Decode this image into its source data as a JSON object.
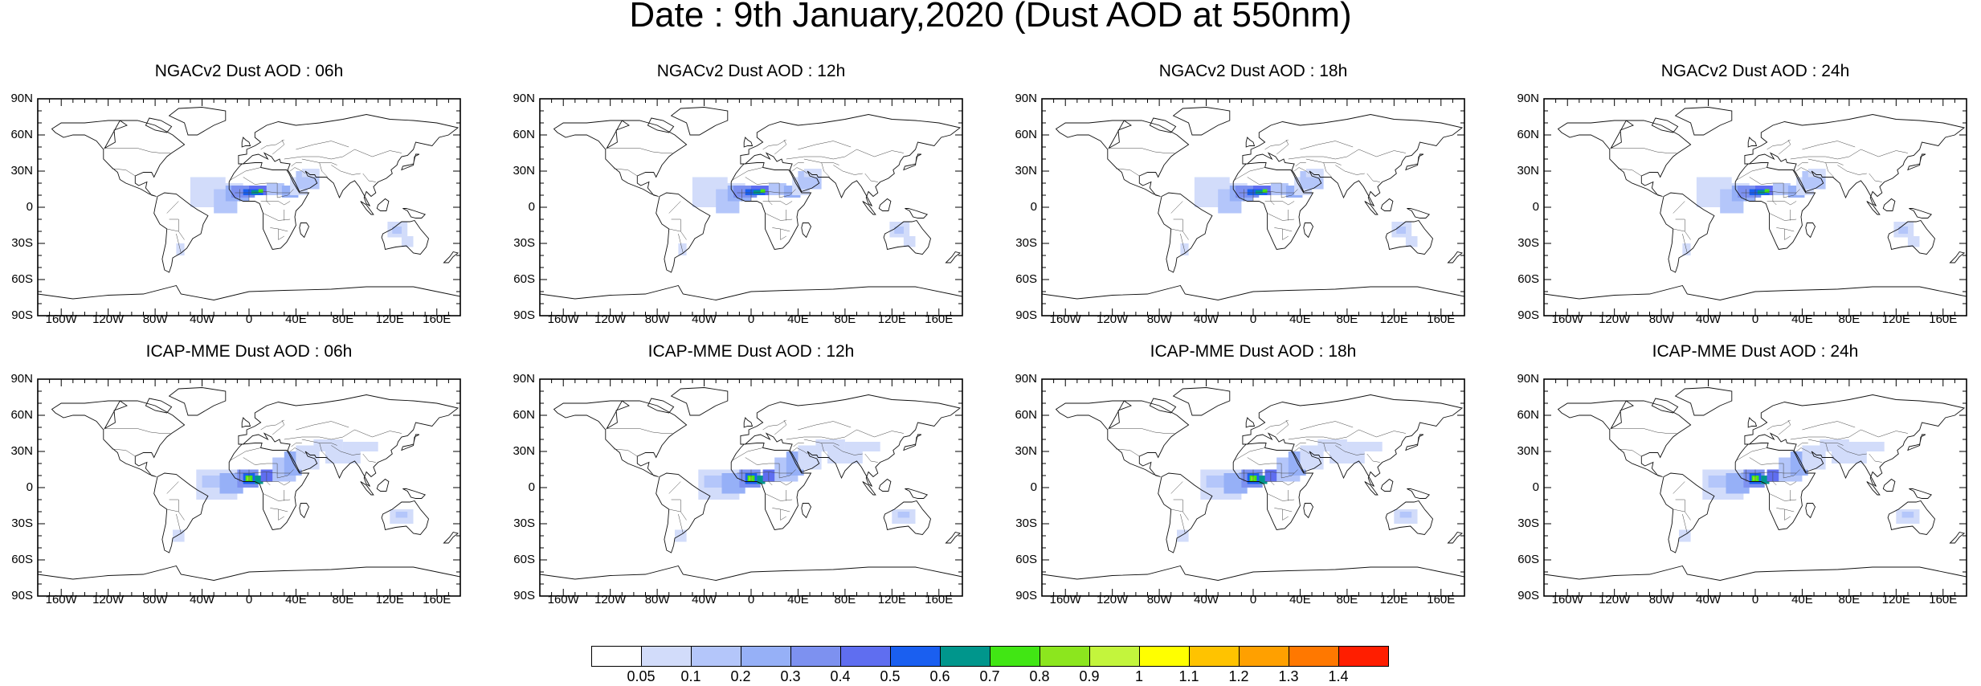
{
  "title": "Date : 9th January,2020 (Dust AOD at 550nm)",
  "panels": [
    {
      "title": "NGACv2 Dust AOD : 06h",
      "model": "NGACv2",
      "hour": "06h"
    },
    {
      "title": "NGACv2 Dust AOD : 12h",
      "model": "NGACv2",
      "hour": "12h"
    },
    {
      "title": "NGACv2 Dust AOD : 18h",
      "model": "NGACv2",
      "hour": "18h"
    },
    {
      "title": "NGACv2 Dust AOD : 24h",
      "model": "NGACv2",
      "hour": "24h"
    },
    {
      "title": "ICAP-MME Dust AOD : 06h",
      "model": "ICAP-MME",
      "hour": "06h"
    },
    {
      "title": "ICAP-MME Dust AOD : 12h",
      "model": "ICAP-MME",
      "hour": "12h"
    },
    {
      "title": "ICAP-MME Dust AOD : 18h",
      "model": "ICAP-MME",
      "hour": "18h"
    },
    {
      "title": "ICAP-MME Dust AOD : 24h",
      "model": "ICAP-MME",
      "hour": "24h"
    }
  ],
  "lat_ticks": [
    "90N",
    "60N",
    "30N",
    "0",
    "30S",
    "60S",
    "90S"
  ],
  "lon_ticks": [
    "160W",
    "120W",
    "80W",
    "40W",
    "0",
    "40E",
    "80E",
    "120E",
    "160E"
  ],
  "colorbar": {
    "labels": [
      "0.05",
      "0.1",
      "0.2",
      "0.3",
      "0.4",
      "0.5",
      "0.6",
      "0.7",
      "0.8",
      "0.9",
      "1",
      "1.1",
      "1.2",
      "1.3",
      "1.4"
    ],
    "colors": [
      "#ffffff",
      "#d2dcfa",
      "#b4c6fa",
      "#96b0f7",
      "#7d91f0",
      "#5f6ef0",
      "#1a5ff0",
      "#00968c",
      "#41e614",
      "#8ce61e",
      "#c3f53c",
      "#ffff00",
      "#ffc300",
      "#ffa000",
      "#ff7800",
      "#ff1e00"
    ]
  }
}
